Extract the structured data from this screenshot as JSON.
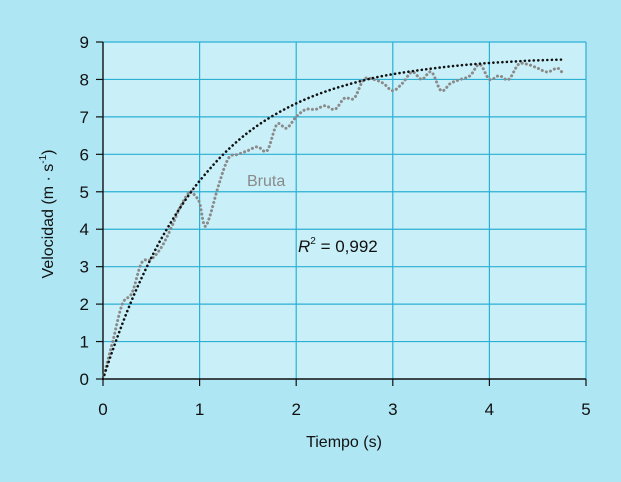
{
  "colors": {
    "outer_background": "#aee6f4",
    "plot_background": "#c9eff8",
    "grid": "#2bb0d4",
    "raw_series": "#8a8a8a",
    "fit_series": "#111111"
  },
  "chart_data": {
    "type": "line",
    "xlabel": "Tiempo (s)",
    "ylabel": "Velocidad (m · s",
    "ylabel_superscript": "-1",
    "ylabel_close": ")",
    "xlim": [
      0,
      5
    ],
    "ylim": [
      0,
      9
    ],
    "xticks": [
      "0",
      "1",
      "2",
      "3",
      "4",
      "5"
    ],
    "yticks": [
      "0",
      "1",
      "2",
      "3",
      "4",
      "5",
      "6",
      "7",
      "8",
      "9"
    ],
    "grid": true,
    "annotations": {
      "raw_label": "Bruta",
      "r2_symbol": "R",
      "r2_superscript": "2",
      "r2_value": " = 0,992"
    },
    "series": [
      {
        "name": "Bruta",
        "style": "dotted",
        "x": [
          0,
          0.1,
          0.2,
          0.3,
          0.4,
          0.5,
          0.6,
          0.7,
          0.8,
          0.9,
          0.95,
          1.0,
          1.05,
          1.1,
          1.2,
          1.3,
          1.4,
          1.5,
          1.6,
          1.7,
          1.8,
          1.9,
          2.0,
          2.1,
          2.2,
          2.3,
          2.4,
          2.5,
          2.6,
          2.7,
          2.8,
          2.9,
          3.0,
          3.1,
          3.2,
          3.3,
          3.4,
          3.5,
          3.6,
          3.7,
          3.8,
          3.9,
          4.0,
          4.1,
          4.2,
          4.3,
          4.4,
          4.5,
          4.6,
          4.7,
          4.75
        ],
        "y": [
          0,
          1.0,
          2.0,
          2.3,
          3.1,
          3.2,
          3.5,
          4.0,
          4.6,
          5.0,
          4.9,
          4.7,
          4.1,
          4.3,
          5.2,
          5.9,
          6.0,
          6.1,
          6.2,
          6.1,
          6.8,
          6.7,
          7.0,
          7.2,
          7.2,
          7.3,
          7.2,
          7.5,
          7.5,
          8.0,
          8.0,
          7.9,
          7.7,
          7.9,
          8.2,
          8.0,
          8.2,
          7.7,
          7.9,
          8.0,
          8.1,
          8.4,
          8.0,
          8.1,
          8.0,
          8.4,
          8.4,
          8.3,
          8.2,
          8.3,
          8.2
        ]
      },
      {
        "name": "",
        "style": "dotted",
        "fit": "exponential",
        "x": [
          0,
          0.1,
          0.2,
          0.3,
          0.4,
          0.5,
          0.6,
          0.7,
          0.8,
          0.9,
          1.0,
          1.2,
          1.4,
          1.6,
          1.8,
          2.0,
          2.2,
          2.4,
          2.6,
          2.8,
          3.0,
          3.2,
          3.4,
          3.6,
          3.8,
          4.0,
          4.2,
          4.4,
          4.6,
          4.75
        ],
        "y": [
          0,
          0.77,
          1.47,
          2.12,
          2.7,
          3.24,
          3.73,
          4.17,
          4.58,
          4.95,
          5.29,
          5.88,
          6.37,
          6.77,
          7.09,
          7.36,
          7.58,
          7.76,
          7.91,
          8.04,
          8.14,
          8.22,
          8.29,
          8.35,
          8.4,
          8.44,
          8.47,
          8.5,
          8.52,
          8.53
        ]
      }
    ]
  }
}
